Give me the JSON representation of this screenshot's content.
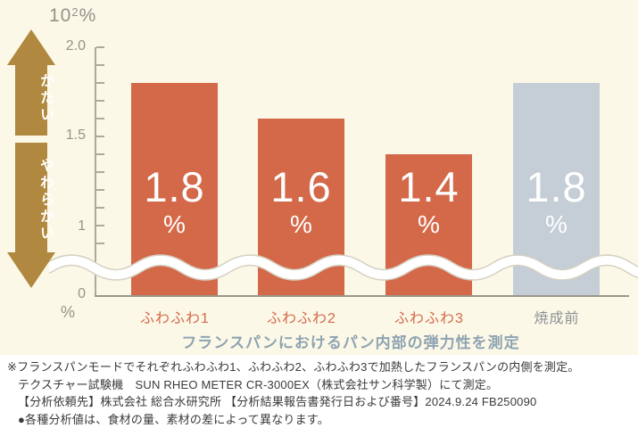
{
  "chart_data": {
    "type": "bar",
    "title": "フランスパンにおけるパン内部の弾力性を測定",
    "scale_label": {
      "prefix": "10",
      "superscript": "2",
      "suffix": "%"
    },
    "categories": [
      "ふわふわ1",
      "ふわふわ2",
      "ふわふわ3",
      "焼成前"
    ],
    "values": [
      1.8,
      1.6,
      1.4,
      1.8
    ],
    "display_values": [
      "1.8",
      "1.6",
      "1.4",
      "1.8"
    ],
    "value_unit": "%",
    "y_ticks": [
      "2.0",
      "1.5",
      "1",
      "0"
    ],
    "y_tick_values": [
      2.0,
      1.5,
      1.0,
      0
    ],
    "y_axis_unit": "%",
    "ylim": [
      0,
      2.0
    ],
    "axis_break": true,
    "grid": false,
    "legend": "none",
    "colors": {
      "bars": [
        "#D4694A",
        "#D4694A",
        "#D4694A",
        "#C5CDD6"
      ],
      "category_labels": [
        "#D4694A",
        "#D4694A",
        "#D4694A",
        "#8C9196"
      ],
      "value_text": "#FFFFFF",
      "title": "#8EA4B2",
      "axis": "#ADA99E",
      "arrow": "#B0883F",
      "panel_background": "#FCF8E7",
      "page_background": "#FFFFFF"
    }
  },
  "hardness_arrow": {
    "top_label": "かたい",
    "bottom_label": "やわらかい"
  },
  "footnotes": [
    "※フランスパンモードでそれぞれふわふわ1、ふわふわ2、ふわふわ3で加熱したフランスパンの内側を測定。",
    "テクスチャー試験機　SUN RHEO METER CR-3000EX（株式会社サン科学製）にて測定。",
    "【分析依頼先】株式会社 総合水研究所 【分析結果報告書発行日および番号】2024.9.24 FB250090",
    "●各種分析値は、食材の量、素材の差によって異なります。"
  ]
}
